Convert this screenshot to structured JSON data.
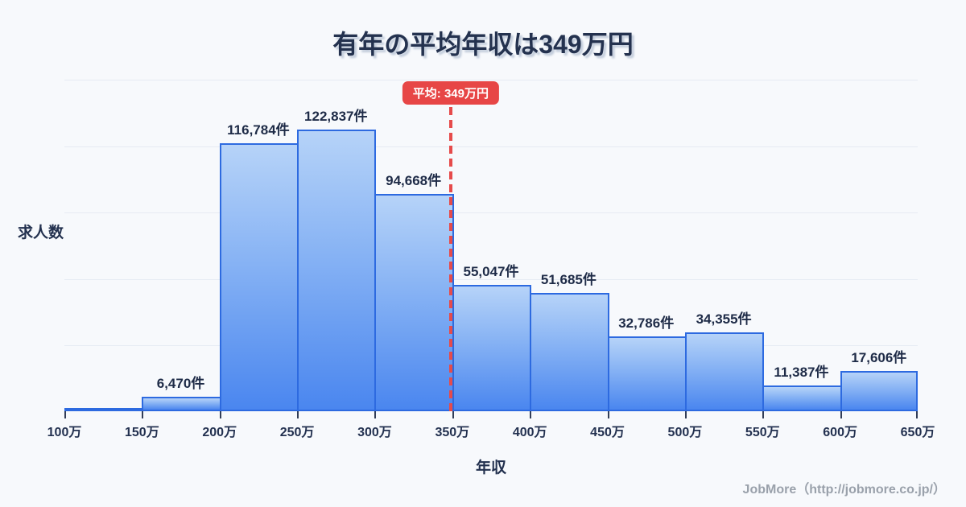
{
  "title": "有年の平均年収は349万円",
  "ylabel": "求人数",
  "xlabel": "年収",
  "footer": "JobMore（http://jobmore.co.jp/）",
  "colors": {
    "background": "#f7f9fc",
    "bar_gradient_top": "#b6d3f8",
    "bar_gradient_bottom": "#4a86ef",
    "bar_border": "#2d6ae0",
    "average_red": "#e74646",
    "title_text": "#24324f",
    "label_text": "#1e2b47",
    "gridline": "#e6ebf3",
    "footer_text": "#9aa1ab"
  },
  "chart_data": {
    "type": "bar",
    "title": "有年の平均年収は349万円",
    "xlabel": "年収",
    "ylabel": "求人数",
    "grid": "horizontal",
    "legend": "none",
    "x_axis_unit": "万円",
    "x_min": 100,
    "x_max": 650,
    "bin_width": 50,
    "x_tick_labels": [
      "100万",
      "150万",
      "200万",
      "250万",
      "300万",
      "350万",
      "400万",
      "450万",
      "500万",
      "550万",
      "600万",
      "650万"
    ],
    "categories": [
      "100万-150万",
      "150万-200万",
      "200万-250万",
      "250万-300万",
      "300万-350万",
      "350万-400万",
      "400万-450万",
      "450万-500万",
      "500万-550万",
      "550万-600万",
      "600万-650万"
    ],
    "values": [
      null,
      6470,
      116784,
      122837,
      94668,
      55047,
      51685,
      32786,
      34355,
      11387,
      17606
    ],
    "value_labels": [
      "",
      "6,470件",
      "116,784件",
      "122,837件",
      "94,668件",
      "55,047件",
      "51,685件",
      "32,786件",
      "34,355件",
      "11,387件",
      "17,606件"
    ],
    "average": {
      "value": 349,
      "label": "平均: 349万円"
    }
  }
}
